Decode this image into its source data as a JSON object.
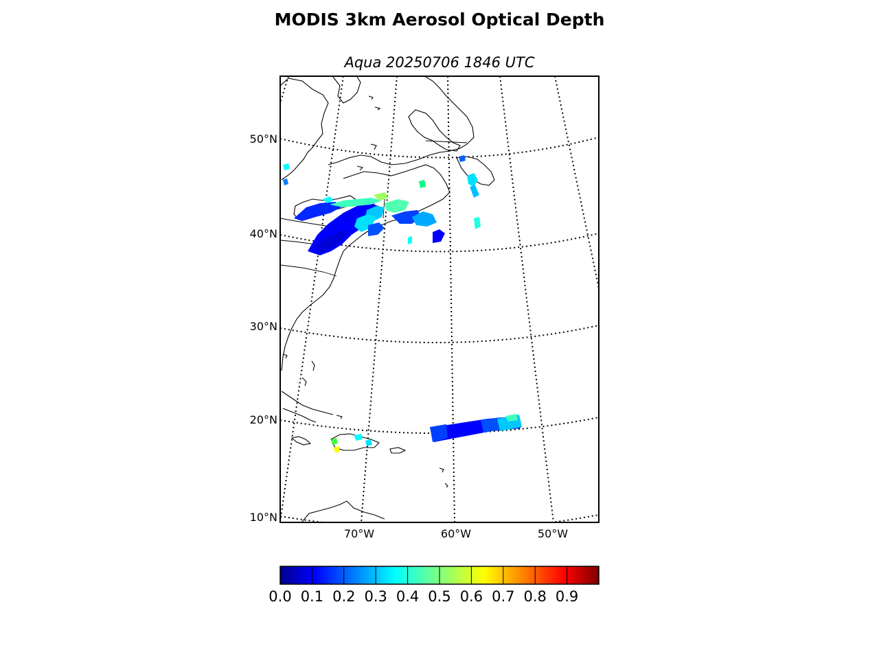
{
  "title": "MODIS 3km Aerosol Optical Depth",
  "subtitle": "Aqua 20250706 1846 UTC",
  "map": {
    "projection": "conic",
    "lat_labels": [
      "50°N",
      "40°N",
      "30°N",
      "20°N",
      "10°N"
    ],
    "lon_labels": [
      "70°W",
      "60°W",
      "50°W"
    ],
    "graticule": "dotted"
  },
  "colorbar": {
    "colormap": "jet",
    "ticks": [
      "0.0",
      "0.1",
      "0.2",
      "0.3",
      "0.4",
      "0.5",
      "0.6",
      "0.7",
      "0.8",
      "0.9"
    ],
    "range": [
      0,
      1
    ]
  },
  "colors": {
    "low": "#00008f",
    "blue": "#0000ff",
    "mid_blue": "#0080ff",
    "cyan": "#00ffff",
    "green": "#80ff80",
    "yellow": "#ffff00",
    "red": "#ff0000",
    "high": "#800000"
  }
}
